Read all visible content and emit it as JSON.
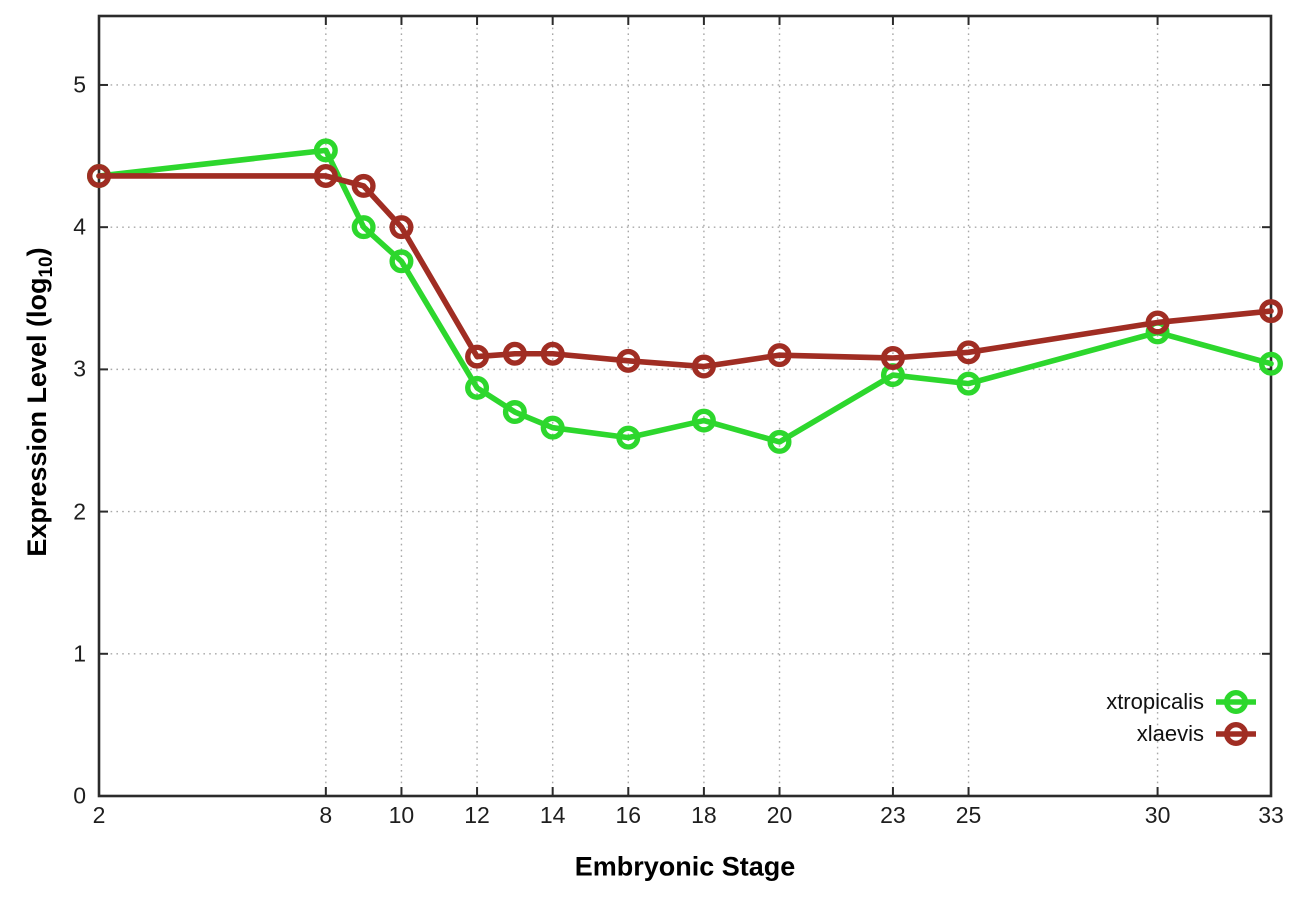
{
  "figure": {
    "background": "#ffffff",
    "axis_color": "#2b2b2b",
    "grid_color": "#a8a8a8",
    "xlabel": "Embryonic Stage",
    "ylabel_prefix": "Expression Level (log",
    "ylabel_sub": "10",
    "ylabel_suffix": ")"
  },
  "chart_data": {
    "type": "line",
    "title": "",
    "xlabel": "Embryonic Stage",
    "ylabel": "Expression Level (log10)",
    "x": [
      2,
      8,
      9,
      10,
      12,
      13,
      14,
      16,
      18,
      20,
      23,
      25,
      30,
      33
    ],
    "x_ticks": [
      2,
      8,
      10,
      12,
      14,
      16,
      18,
      20,
      23,
      25,
      30,
      33
    ],
    "y_ticks": [
      0,
      1,
      2,
      3,
      4,
      5
    ],
    "xlim": [
      2,
      33
    ],
    "ylim": [
      0,
      5.485
    ],
    "grid": true,
    "marker": "open-circle",
    "legend_position": "bottom-right",
    "series": [
      {
        "name": "xtropicalis",
        "color": "#2dd72d",
        "values": [
          4.36,
          4.54,
          4.0,
          3.76,
          2.87,
          2.7,
          2.59,
          2.52,
          2.64,
          2.49,
          2.96,
          2.9,
          3.26,
          3.04
        ]
      },
      {
        "name": "xlaevis",
        "color": "#a02d23",
        "values": [
          4.36,
          4.36,
          4.29,
          4.0,
          3.09,
          3.11,
          3.11,
          3.06,
          3.02,
          3.1,
          3.08,
          3.12,
          3.33,
          3.41
        ]
      }
    ]
  }
}
